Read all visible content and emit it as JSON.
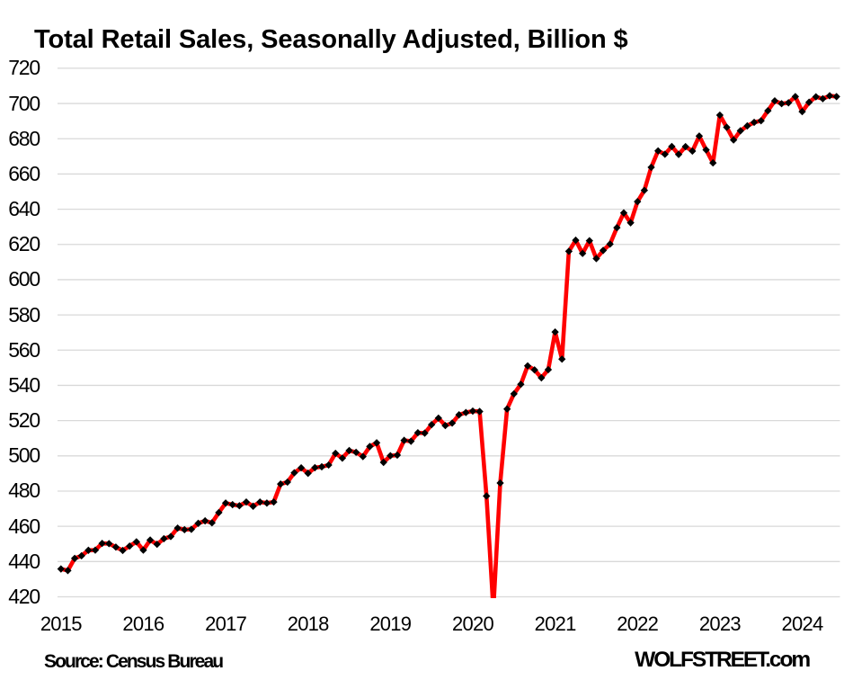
{
  "chart_data": {
    "type": "line",
    "title": "Total Retail Sales, Seasonally Adjusted, Billion $",
    "xlabel": "",
    "ylabel": "",
    "ylim": [
      420,
      720
    ],
    "y_tick_step": 20,
    "y_ticks": [
      "720",
      "700",
      "680",
      "660",
      "640",
      "620",
      "600",
      "580",
      "560",
      "540",
      "520",
      "500",
      "480",
      "460",
      "440",
      "420"
    ],
    "x_ticks": [
      "2015",
      "2016",
      "2017",
      "2018",
      "2019",
      "2020",
      "2021",
      "2022",
      "2023",
      "2024"
    ],
    "grid": "horizontal",
    "legend": "none",
    "line_color": "#ff0000",
    "marker_color": "#000000",
    "gridline_color": "#d9d9d9",
    "series": [
      {
        "name": "Total Retail Sales",
        "x": [
          "2015-01",
          "2015-02",
          "2015-03",
          "2015-04",
          "2015-05",
          "2015-06",
          "2015-07",
          "2015-08",
          "2015-09",
          "2015-10",
          "2015-11",
          "2015-12",
          "2016-01",
          "2016-02",
          "2016-03",
          "2016-04",
          "2016-05",
          "2016-06",
          "2016-07",
          "2016-08",
          "2016-09",
          "2016-10",
          "2016-11",
          "2016-12",
          "2017-01",
          "2017-02",
          "2017-03",
          "2017-04",
          "2017-05",
          "2017-06",
          "2017-07",
          "2017-08",
          "2017-09",
          "2017-10",
          "2017-11",
          "2017-12",
          "2018-01",
          "2018-02",
          "2018-03",
          "2018-04",
          "2018-05",
          "2018-06",
          "2018-07",
          "2018-08",
          "2018-09",
          "2018-10",
          "2018-11",
          "2018-12",
          "2019-01",
          "2019-02",
          "2019-03",
          "2019-04",
          "2019-05",
          "2019-06",
          "2019-07",
          "2019-08",
          "2019-09",
          "2019-10",
          "2019-11",
          "2019-12",
          "2020-01",
          "2020-02",
          "2020-03",
          "2020-04",
          "2020-05",
          "2020-06",
          "2020-07",
          "2020-08",
          "2020-09",
          "2020-10",
          "2020-11",
          "2020-12",
          "2021-01",
          "2021-02",
          "2021-03",
          "2021-04",
          "2021-05",
          "2021-06",
          "2021-07",
          "2021-08",
          "2021-09",
          "2021-10",
          "2021-11",
          "2021-12",
          "2022-01",
          "2022-02",
          "2022-03",
          "2022-04",
          "2022-05",
          "2022-06",
          "2022-07",
          "2022-08",
          "2022-09",
          "2022-10",
          "2022-11",
          "2022-12",
          "2023-01",
          "2023-02",
          "2023-03",
          "2023-04",
          "2023-05",
          "2023-06",
          "2023-07",
          "2023-08",
          "2023-09",
          "2023-10",
          "2023-11",
          "2023-12",
          "2024-01",
          "2024-02",
          "2024-03",
          "2024-04",
          "2024-05",
          "2024-06"
        ],
        "values": [
          435.8,
          434.9,
          441.8,
          443.3,
          446.4,
          446.5,
          450.3,
          450.2,
          448.2,
          446.3,
          448.8,
          451.2,
          446.5,
          452.2,
          449.8,
          453.0,
          454.2,
          459.0,
          458.1,
          458.3,
          461.7,
          463.1,
          462.0,
          467.8,
          473.2,
          472.3,
          471.7,
          473.8,
          471.4,
          473.8,
          473.2,
          473.8,
          484.0,
          485.1,
          490.4,
          493.2,
          490.1,
          493.3,
          493.8,
          494.8,
          501.4,
          498.7,
          503.0,
          502.0,
          499.6,
          505.3,
          507.4,
          496.3,
          500.1,
          500.4,
          508.8,
          508.3,
          513.1,
          512.9,
          517.7,
          521.4,
          517.2,
          518.6,
          523.3,
          524.6,
          525.4,
          525.2,
          477.2,
          412.8,
          484.6,
          526.6,
          535.2,
          540.6,
          551.1,
          548.8,
          544.3,
          548.9,
          570.3,
          554.9,
          616.1,
          622.4,
          614.9,
          622.1,
          612.0,
          616.6,
          620.2,
          629.5,
          637.9,
          632.3,
          644.3,
          650.7,
          663.8,
          673.1,
          671.2,
          675.6,
          671.1,
          675.5,
          673.0,
          681.5,
          673.7,
          666.3,
          693.4,
          686.5,
          679.3,
          684.5,
          687.3,
          689.3,
          690.2,
          695.9,
          701.5,
          699.9,
          700.4,
          703.9,
          695.4,
          700.7,
          703.8,
          702.7,
          704.4,
          703.9
        ]
      }
    ]
  },
  "footer": {
    "source": "Source: Census Bureau",
    "brand": "WOLFSTREET.com"
  }
}
